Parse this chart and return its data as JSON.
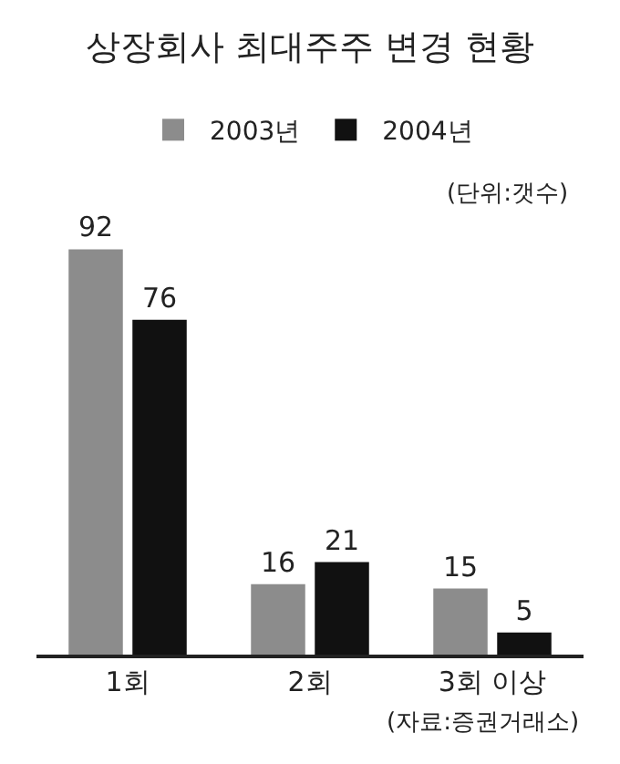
{
  "chart_data": {
    "type": "bar",
    "title": "상장회사 최대주주 변경 현황",
    "categories": [
      "1회",
      "2회",
      "3회 이상"
    ],
    "series": [
      {
        "name": "2003년",
        "color": "#8c8c8c",
        "values": [
          92,
          16,
          15
        ]
      },
      {
        "name": "2004년",
        "color": "#111111",
        "values": [
          76,
          21,
          5
        ]
      }
    ],
    "data_labels": true,
    "legend": "top",
    "annotations": [
      "(단위:갯수)",
      "(자료:증권거래소)"
    ]
  }
}
